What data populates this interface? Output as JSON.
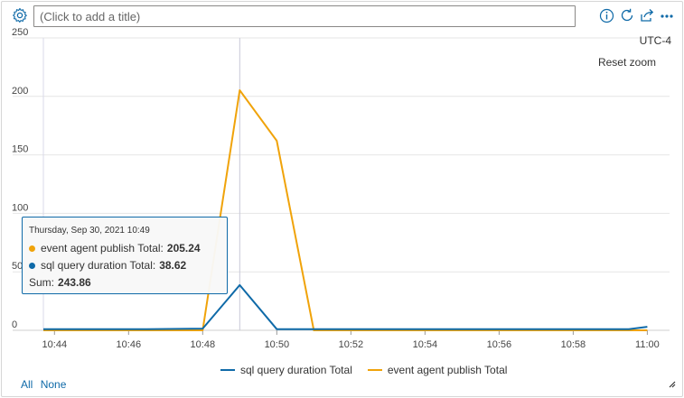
{
  "header": {
    "title_placeholder": "(Click to add a title)",
    "icons": [
      "gear-icon",
      "info-icon",
      "refresh-icon",
      "share-icon",
      "more-icon"
    ]
  },
  "chart_meta": {
    "timezone": "UTC-4",
    "reset_zoom_label": "Reset zoom"
  },
  "tooltip": {
    "date": "Thursday, Sep 30, 2021 10:49",
    "rows": [
      {
        "label": "event agent publish Total:",
        "value": "205.24",
        "color": "#f0a30a"
      },
      {
        "label": "sql query duration Total:",
        "value": "38.62",
        "color": "#0f6aa8"
      }
    ],
    "sum_label": "Sum:",
    "sum_value": "243.86"
  },
  "legend": {
    "items": [
      {
        "label": "sql query duration Total",
        "color": "#0f6aa8"
      },
      {
        "label": "event agent publish Total",
        "color": "#f0a30a"
      }
    ]
  },
  "footer": {
    "all_label": "All",
    "none_label": "None"
  },
  "chart_data": {
    "type": "line",
    "title": "",
    "xlabel": "",
    "ylabel": "",
    "ylim": [
      0,
      250
    ],
    "yticks": [
      0,
      50,
      100,
      150,
      200,
      250
    ],
    "xticks": [
      "10:44",
      "10:46",
      "10:48",
      "10:50",
      "10:52",
      "10:54",
      "10:56",
      "10:58",
      "11:00"
    ],
    "xlim": [
      "10:43.7",
      "11:00.6"
    ],
    "grid": true,
    "legend_position": "bottom",
    "crosshair_x": "10:49",
    "series": [
      {
        "name": "sql query duration Total",
        "color": "#0f6aa8",
        "x": [
          "10:43.7",
          "10:46.5",
          "10:48",
          "10:49",
          "10:50",
          "10:51",
          "10:59.5",
          "11:00"
        ],
        "y": [
          1,
          1,
          1.5,
          38.62,
          1,
          1,
          1,
          3
        ]
      },
      {
        "name": "event agent publish Total",
        "color": "#f0a30a",
        "x": [
          "10:43.7",
          "10:48",
          "10:49",
          "10:50",
          "10:51",
          "11:00"
        ],
        "y": [
          0,
          0,
          205.24,
          162,
          0,
          0
        ]
      }
    ]
  }
}
